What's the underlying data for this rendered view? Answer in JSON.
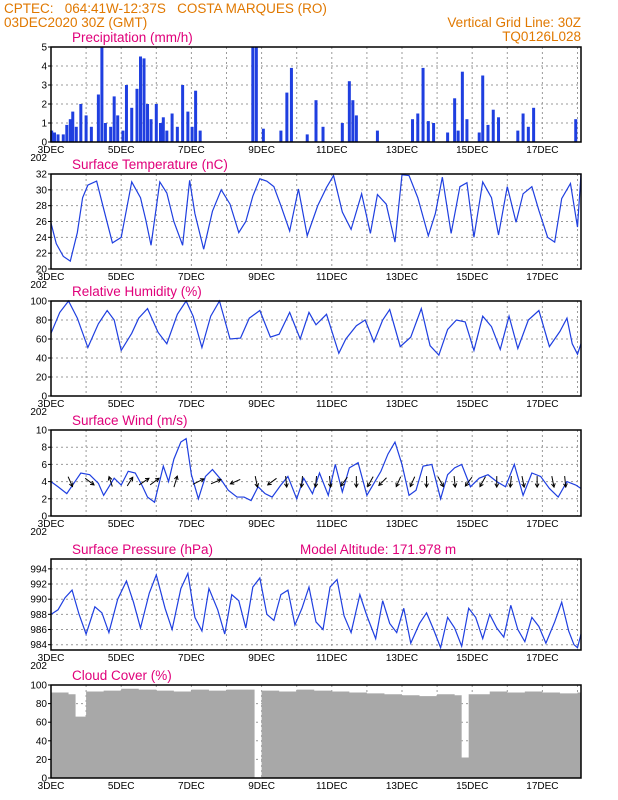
{
  "header": {
    "line1_left": "CPTEC:   064:41W-12:37S   COSTA MARQUES (RO)",
    "line2_left": "03DEC2020 30Z (GMT)",
    "line2_right": "Vertical Grid Line: 30Z",
    "line3_right": "TQ0126L028"
  },
  "colors": {
    "header": "#e07800",
    "panel_title": "#e0007a",
    "series": "#1f3fe0",
    "wind_arrow": "#000000",
    "cloud_fill": "#a8a8a8",
    "grid": "#9a9a9a"
  },
  "x_axis": {
    "tick_labels": [
      "3DEC",
      "5DEC",
      "7DEC",
      "9DEC",
      "11DEC",
      "13DEC",
      "15DEC",
      "17DEC"
    ],
    "tick_days": [
      3,
      5,
      7,
      9,
      11,
      13,
      15,
      17
    ],
    "start_day": 3,
    "end_day": 18.1,
    "vertical_grid": "30Z",
    "year_fragment": "202"
  },
  "chart_data": [
    {
      "type": "bar",
      "title": "Precipitation (mm/h)",
      "ylim": [
        0,
        5
      ],
      "yticks": [
        0,
        1,
        2,
        3,
        4,
        5
      ],
      "grid": true,
      "series": [
        {
          "x": [
            3.02,
            3.1,
            3.2,
            3.35,
            3.45,
            3.55,
            3.62,
            3.72,
            3.85,
            4.0,
            4.15,
            4.35,
            4.45,
            4.55,
            4.7,
            4.8,
            4.9,
            5.05,
            5.15,
            5.3,
            5.45,
            5.55,
            5.65,
            5.75,
            5.85,
            6.0,
            6.12,
            6.2,
            6.3,
            6.45,
            6.6,
            6.75,
            6.9,
            7.02,
            7.12,
            7.25,
            8.75,
            8.85,
            9.05,
            9.55,
            9.72,
            9.85,
            10.3,
            10.55,
            10.75,
            11.3,
            11.5,
            11.6,
            11.7,
            12.3,
            13.3,
            13.45,
            13.6,
            13.75,
            13.9,
            14.3,
            14.5,
            14.6,
            14.72,
            14.85,
            15.2,
            15.3,
            15.45,
            15.6,
            15.75,
            16.3,
            16.45,
            16.6,
            16.75,
            17.95
          ],
          "values": [
            0.6,
            0.5,
            0.4,
            0.4,
            0.9,
            1.2,
            1.6,
            0.8,
            2.0,
            1.4,
            0.8,
            2.5,
            5.0,
            1.0,
            0.8,
            2.4,
            1.4,
            0.6,
            3.0,
            1.8,
            2.8,
            4.5,
            4.4,
            2.0,
            1.2,
            2.0,
            1.0,
            1.3,
            0.6,
            1.5,
            0.8,
            3.0,
            1.6,
            0.8,
            2.7,
            0.6,
            5.0,
            5.0,
            0.7,
            0.6,
            2.6,
            3.9,
            0.4,
            2.2,
            0.8,
            1.0,
            3.2,
            2.2,
            1.4,
            0.6,
            1.2,
            1.5,
            3.9,
            1.1,
            1.0,
            0.5,
            2.3,
            0.6,
            3.7,
            1.2,
            0.5,
            3.5,
            0.9,
            1.7,
            1.3,
            0.6,
            1.5,
            0.8,
            1.8,
            1.2
          ]
        }
      ]
    },
    {
      "type": "line",
      "title": "Surface Temperature (nC)",
      "ylim": [
        20,
        32
      ],
      "yticks": [
        20,
        22,
        24,
        26,
        28,
        30,
        32
      ],
      "grid": true,
      "series": [
        {
          "x": [
            3.0,
            3.15,
            3.35,
            3.55,
            3.75,
            3.9,
            4.05,
            4.3,
            4.5,
            4.75,
            5.0,
            5.3,
            5.55,
            5.7,
            5.85,
            6.1,
            6.3,
            6.5,
            6.75,
            6.95,
            7.1,
            7.35,
            7.6,
            7.85,
            8.1,
            8.35,
            8.55,
            8.75,
            8.95,
            9.15,
            9.35,
            9.55,
            9.8,
            10.05,
            10.3,
            10.6,
            10.85,
            11.05,
            11.3,
            11.55,
            11.85,
            12.1,
            12.3,
            12.55,
            12.8,
            13.0,
            13.2,
            13.45,
            13.75,
            13.95,
            14.15,
            14.4,
            14.65,
            14.85,
            15.05,
            15.3,
            15.55,
            15.75,
            16.0,
            16.25,
            16.45,
            16.7,
            16.9,
            17.15,
            17.35,
            17.55,
            17.8,
            18.0,
            18.1
          ],
          "values": [
            25.8,
            23.2,
            21.6,
            21.0,
            24.6,
            29.0,
            30.6,
            31.1,
            27.6,
            23.3,
            24.0,
            31.0,
            29.0,
            26.2,
            23.0,
            31.0,
            29.6,
            26.0,
            23.0,
            31.2,
            27.0,
            22.5,
            27.3,
            30.0,
            28.2,
            24.6,
            26.0,
            29.2,
            31.4,
            31.1,
            30.4,
            28.0,
            24.8,
            30.1,
            24.2,
            28.0,
            30.3,
            31.8,
            27.2,
            25.0,
            29.5,
            24.5,
            29.4,
            28.2,
            23.4,
            31.9,
            31.8,
            29.0,
            24.2,
            27.0,
            31.6,
            24.5,
            30.4,
            30.9,
            24.0,
            31.0,
            29.0,
            24.3,
            30.4,
            25.9,
            29.5,
            30.4,
            27.4,
            24.0,
            23.4,
            28.9,
            30.8,
            25.3,
            32.0
          ]
        }
      ]
    },
    {
      "type": "line",
      "title": "Relative Humidity (%)",
      "ylim": [
        0,
        100
      ],
      "yticks": [
        0,
        20,
        40,
        60,
        80,
        100
      ],
      "grid": true,
      "series": [
        {
          "x": [
            3.0,
            3.25,
            3.5,
            3.75,
            4.05,
            4.35,
            4.6,
            4.8,
            5.0,
            5.3,
            5.5,
            5.75,
            6.05,
            6.3,
            6.6,
            6.85,
            7.05,
            7.3,
            7.55,
            7.8,
            8.1,
            8.4,
            8.65,
            8.95,
            9.25,
            9.5,
            9.8,
            10.1,
            10.35,
            10.55,
            10.85,
            11.2,
            11.4,
            11.7,
            11.95,
            12.2,
            12.45,
            12.65,
            12.95,
            13.25,
            13.55,
            13.8,
            14.05,
            14.3,
            14.55,
            14.8,
            15.05,
            15.3,
            15.55,
            15.8,
            16.05,
            16.3,
            16.6,
            16.9,
            17.2,
            17.5,
            17.7,
            17.85,
            18.0,
            18.1
          ],
          "values": [
            66,
            88,
            100,
            82,
            51,
            76,
            90,
            80,
            48,
            66,
            82,
            92,
            67,
            55,
            86,
            100,
            84,
            51,
            84,
            100,
            60,
            61,
            82,
            90,
            62,
            65,
            88,
            60,
            88,
            75,
            86,
            45,
            60,
            74,
            80,
            57,
            80,
            91,
            52,
            62,
            92,
            53,
            43,
            70,
            80,
            78,
            48,
            84,
            73,
            49,
            84,
            50,
            80,
            90,
            52,
            68,
            82,
            55,
            44,
            55
          ]
        }
      ]
    },
    {
      "type": "line",
      "title": "Surface Wind (m/s)",
      "ylim": [
        0,
        10
      ],
      "yticks": [
        0,
        2,
        4,
        6,
        8,
        10
      ],
      "grid": true,
      "series": [
        {
          "x": [
            3.0,
            3.2,
            3.45,
            3.65,
            3.85,
            4.1,
            4.35,
            4.5,
            4.8,
            5.0,
            5.2,
            5.4,
            5.6,
            5.75,
            5.95,
            6.2,
            6.35,
            6.5,
            6.7,
            6.85,
            7.0,
            7.2,
            7.4,
            7.6,
            7.85,
            8.05,
            8.3,
            8.5,
            8.7,
            8.9,
            9.1,
            9.3,
            9.55,
            9.75,
            10.0,
            10.2,
            10.45,
            10.65,
            10.9,
            11.1,
            11.3,
            11.5,
            11.75,
            12.0,
            12.2,
            12.4,
            12.6,
            12.8,
            13.0,
            13.2,
            13.4,
            13.6,
            13.85,
            14.1,
            14.3,
            14.5,
            14.7,
            14.95,
            15.2,
            15.45,
            15.7,
            15.95,
            16.2,
            16.45,
            16.7,
            16.95,
            17.2,
            17.45,
            17.7,
            17.95,
            18.1
          ],
          "values": [
            4.0,
            3.4,
            2.6,
            3.8,
            5.0,
            4.8,
            3.8,
            2.4,
            4.4,
            3.6,
            5.2,
            5.0,
            3.5,
            2.2,
            1.6,
            5.8,
            4.0,
            6.6,
            8.6,
            9.0,
            4.8,
            2.0,
            4.6,
            5.4,
            4.2,
            3.0,
            2.2,
            2.2,
            1.8,
            3.4,
            2.6,
            2.2,
            3.6,
            4.6,
            2.0,
            4.4,
            2.6,
            5.0,
            2.4,
            6.0,
            2.8,
            5.6,
            6.2,
            2.4,
            3.8,
            5.2,
            7.2,
            8.6,
            6.0,
            2.4,
            3.0,
            5.8,
            6.0,
            2.0,
            4.8,
            5.6,
            6.0,
            3.4,
            4.4,
            4.8,
            4.0,
            3.4,
            6.0,
            2.4,
            5.0,
            4.6,
            3.2,
            2.2,
            4.0,
            3.6,
            3.2
          ]
        }
      ],
      "wind_vectors": {
        "x": [
          3.55,
          4.1,
          4.7,
          5.25,
          5.65,
          5.95,
          6.55,
          7.2,
          7.7,
          8.25,
          8.85,
          9.3,
          9.7,
          10.15,
          10.55,
          10.95,
          11.35,
          11.7,
          12.1,
          12.45,
          12.9,
          13.3,
          13.7,
          14.1,
          14.5,
          14.9,
          15.3,
          15.7,
          16.1,
          16.45,
          16.85,
          17.3,
          17.65
        ],
        "u": [
          0.4,
          0.8,
          -0.3,
          0.5,
          0.9,
          0.8,
          0.3,
          1.0,
          0.9,
          -0.9,
          0.2,
          -0.8,
          0.1,
          -0.1,
          -0.1,
          0.1,
          -0.6,
          0.0,
          -0.5,
          -0.7,
          -0.4,
          -0.4,
          0.0,
          0.5,
          0.1,
          -0.6,
          -0.5,
          0.0,
          -0.1,
          0.2,
          0.0,
          0.2,
          0.1
        ],
        "v": [
          -0.9,
          -0.6,
          0.9,
          0.8,
          0.6,
          0.6,
          1.0,
          0.5,
          0.4,
          -0.4,
          -1.0,
          -0.6,
          -1.0,
          -1.0,
          -1.0,
          -1.0,
          -0.8,
          -1.0,
          -0.9,
          -0.7,
          -0.9,
          -0.9,
          -1.0,
          -0.9,
          -1.0,
          -0.8,
          -0.9,
          -1.0,
          -1.0,
          -1.0,
          -1.0,
          -1.0,
          -1.0
        ]
      }
    },
    {
      "type": "line",
      "title": "Surface Pressure (hPa)",
      "subtitle": "Model Altitude: 171.978  m",
      "ylim": [
        983.3,
        995.3
      ],
      "yticks": [
        984,
        986,
        988,
        990,
        992,
        994
      ],
      "grid": true,
      "series": [
        {
          "x": [
            3.0,
            3.2,
            3.4,
            3.6,
            3.8,
            4.0,
            4.25,
            4.45,
            4.65,
            4.9,
            5.15,
            5.35,
            5.55,
            5.8,
            6.0,
            6.25,
            6.45,
            6.7,
            6.9,
            7.1,
            7.3,
            7.5,
            7.75,
            7.95,
            8.15,
            8.35,
            8.55,
            8.75,
            8.95,
            9.15,
            9.35,
            9.55,
            9.75,
            9.95,
            10.15,
            10.35,
            10.55,
            10.75,
            10.95,
            11.15,
            11.35,
            11.55,
            11.8,
            12.0,
            12.25,
            12.45,
            12.65,
            12.85,
            13.05,
            13.25,
            13.5,
            13.7,
            13.9,
            14.1,
            14.3,
            14.5,
            14.7,
            14.9,
            15.1,
            15.3,
            15.5,
            15.7,
            15.9,
            16.1,
            16.3,
            16.5,
            16.7,
            16.9,
            17.1,
            17.35,
            17.55,
            17.75,
            17.9,
            18.0,
            18.1
          ],
          "values": [
            988.0,
            988.6,
            990.2,
            991.2,
            988.0,
            985.4,
            989.0,
            988.2,
            985.6,
            990.0,
            992.4,
            989.6,
            986.2,
            990.8,
            993.2,
            988.8,
            986.0,
            991.4,
            993.4,
            987.6,
            985.8,
            991.4,
            988.6,
            985.4,
            990.6,
            989.8,
            986.2,
            991.6,
            992.8,
            988.0,
            987.2,
            990.6,
            991.2,
            986.6,
            988.8,
            991.6,
            987.0,
            986.0,
            991.6,
            992.6,
            987.8,
            985.6,
            990.6,
            987.8,
            984.8,
            989.8,
            986.8,
            985.6,
            988.8,
            984.2,
            986.8,
            988.2,
            986.0,
            983.6,
            987.6,
            986.2,
            983.8,
            988.8,
            987.6,
            984.8,
            988.0,
            986.2,
            985.0,
            989.2,
            986.0,
            984.4,
            987.6,
            986.4,
            984.2,
            987.0,
            989.6,
            985.8,
            984.0,
            983.6,
            985.4
          ]
        }
      ]
    },
    {
      "type": "bar",
      "title": "Cloud Cover (%)",
      "ylim": [
        0,
        100
      ],
      "yticks": [
        0,
        20,
        40,
        60,
        80,
        100
      ],
      "grid": true,
      "series": [
        {
          "x": [
            3.0,
            3.5,
            3.7,
            4.0,
            4.5,
            5.0,
            5.5,
            6.0,
            6.5,
            7.0,
            7.5,
            8.0,
            8.5,
            8.8,
            9.0,
            9.5,
            10.0,
            10.5,
            11.0,
            11.5,
            12.0,
            12.5,
            13.0,
            13.5,
            14.0,
            14.5,
            14.7,
            14.9,
            15.5,
            16.0,
            16.5,
            17.0,
            17.5,
            18.0
          ],
          "values": [
            92,
            90,
            66,
            93,
            94,
            96,
            95,
            94,
            93,
            95,
            94,
            95,
            95,
            0,
            94,
            93,
            95,
            94,
            93,
            92,
            91,
            90,
            89,
            88,
            90,
            89,
            22,
            90,
            93,
            92,
            93,
            92,
            91,
            92
          ]
        }
      ]
    }
  ]
}
